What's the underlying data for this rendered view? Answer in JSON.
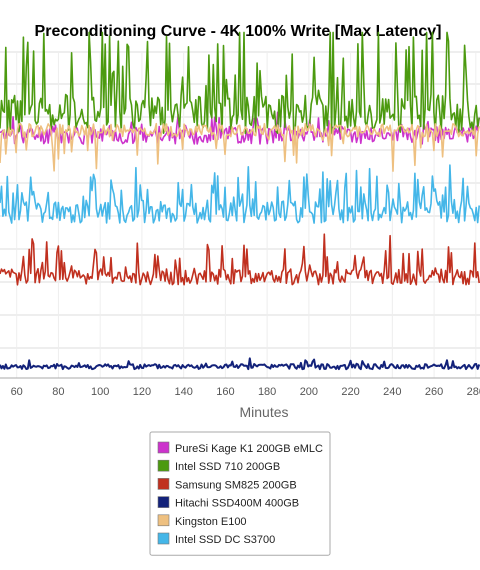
{
  "chart_data": {
    "type": "line",
    "title": "Preconditioning Curve - 4K 100% Write [Max Latency]",
    "xlabel": "Minutes",
    "ylabel": "",
    "xlim": [
      52,
      282
    ],
    "ylim": [
      0,
      10
    ],
    "x_ticks": [
      60,
      80,
      100,
      120,
      140,
      160,
      180,
      200,
      220,
      240,
      260,
      280
    ],
    "grid": true,
    "legend_position": "bottom",
    "series": [
      {
        "name": "PureSi Kage K1 200GB eMLC",
        "color": "#cc33cc",
        "base": 7.45,
        "noise": 0.28,
        "spikes": 0.35,
        "spike_prob": 0.12,
        "seed": 11
      },
      {
        "name": "Intel SSD 710 200GB",
        "color": "#4c9a10",
        "base": 8.1,
        "noise": 0.6,
        "spikes": 2.2,
        "spike_prob": 0.18,
        "seed": 23
      },
      {
        "name": "Samsung SM825 200GB",
        "color": "#c0301f",
        "base": 3.1,
        "noise": 0.25,
        "spikes": 0.9,
        "spike_prob": 0.16,
        "seed": 37
      },
      {
        "name": "Hitachi SSD400M 400GB",
        "color": "#13227a",
        "base": 0.35,
        "noise": 0.08,
        "spikes": 0.15,
        "spike_prob": 0.1,
        "seed": 41
      },
      {
        "name": "Kingston E100",
        "color": "#eec080",
        "base": 7.6,
        "noise": 0.2,
        "spikes": -0.9,
        "spike_prob": 0.14,
        "seed": 53
      },
      {
        "name": "Intel SSD DC S3700",
        "color": "#44b6e8",
        "base": 5.1,
        "noise": 0.35,
        "spikes": 0.9,
        "spike_prob": 0.2,
        "seed": 67
      }
    ]
  }
}
